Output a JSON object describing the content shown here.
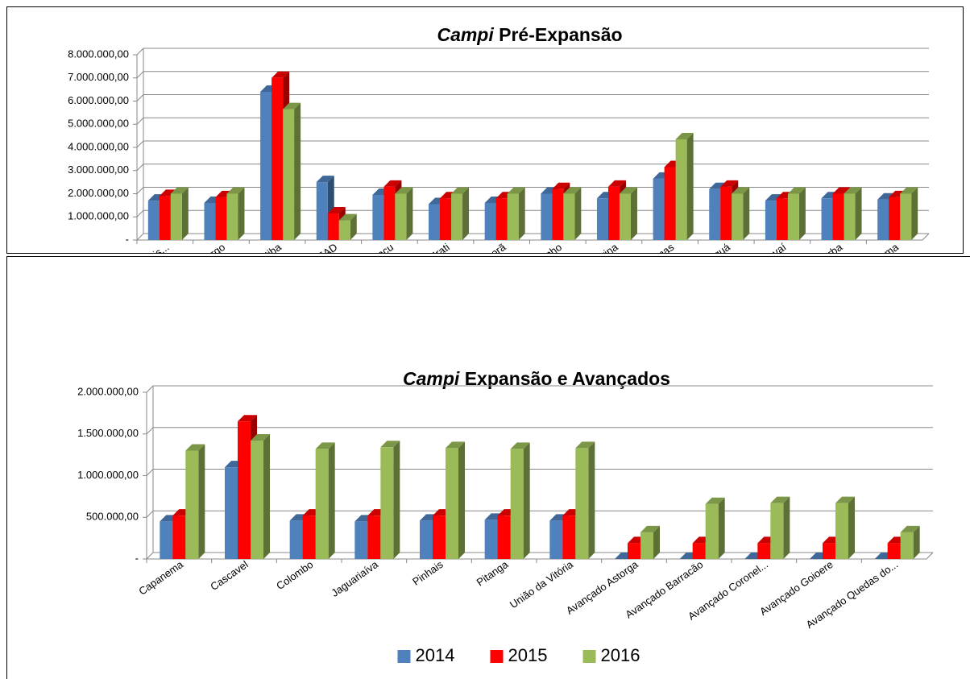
{
  "chart_data": [
    {
      "type": "bar",
      "title_emphasis": "Campi",
      "title": "Pré-Expansão",
      "categories": [
        "Assis...",
        "Campo Largo",
        "Curitiba",
        "EAD",
        "Foz do Iguaçu",
        "Irati",
        "Ivaiporã",
        "Jacarezinho",
        "Londrina",
        "Palmas",
        "Paranaguá",
        "Paranavaí",
        "Telêmaco Borba",
        "Umuarama"
      ],
      "series": [
        {
          "name": "2014",
          "color": "#4f81bd",
          "values": [
            1700000,
            1600000,
            6400000,
            2500000,
            1950000,
            1550000,
            1600000,
            2000000,
            1800000,
            2650000,
            2200000,
            1700000,
            1800000,
            1750000
          ]
        },
        {
          "name": "2015",
          "color": "#ff0000",
          "values": [
            1900000,
            1850000,
            7000000,
            1150000,
            2300000,
            1800000,
            1800000,
            2200000,
            2300000,
            3150000,
            2300000,
            1800000,
            2000000,
            1850000
          ]
        },
        {
          "name": "2016",
          "color": "#9bbb59",
          "values": [
            2000000,
            2000000,
            5650000,
            850000,
            2000000,
            2000000,
            2000000,
            2000000,
            2000000,
            4350000,
            2000000,
            2000000,
            2000000,
            2000000
          ]
        }
      ],
      "ylim": [
        0,
        8000000
      ],
      "yticks": [
        {
          "value": 0,
          "label": "-"
        },
        {
          "value": 1000000,
          "label": "1.000.000,00"
        },
        {
          "value": 2000000,
          "label": "2.000.000,00"
        },
        {
          "value": 3000000,
          "label": "3.000.000,00"
        },
        {
          "value": 4000000,
          "label": "4.000.000,00"
        },
        {
          "value": 5000000,
          "label": "5.000.000,00"
        },
        {
          "value": 6000000,
          "label": "6.000.000,00"
        },
        {
          "value": 7000000,
          "label": "7.000.000,00"
        },
        {
          "value": 8000000,
          "label": "8.000.000,00"
        }
      ],
      "grid": true,
      "legend": "bottom"
    },
    {
      "type": "bar",
      "title_emphasis": "Campi",
      "title": "Expansão e Avançados",
      "categories": [
        "Capanema",
        "Cascavel",
        "Colombo",
        "Jaguariaíva",
        "Pinhais",
        "Pitanga",
        "União da Vitória",
        "Avançado Astorga",
        "Avançado Barracão",
        "Avançado Coronel...",
        "Avançado Goioere",
        "Avançado Quedas do..."
      ],
      "series": [
        {
          "name": "2014",
          "color": "#4f81bd",
          "values": [
            450000,
            1100000,
            460000,
            450000,
            460000,
            470000,
            460000,
            0,
            0,
            0,
            0,
            0
          ]
        },
        {
          "name": "2015",
          "color": "#ff0000",
          "values": [
            520000,
            1650000,
            520000,
            520000,
            520000,
            520000,
            520000,
            190000,
            190000,
            190000,
            190000,
            190000
          ]
        },
        {
          "name": "2016",
          "color": "#9bbb59",
          "values": [
            1300000,
            1420000,
            1320000,
            1340000,
            1330000,
            1320000,
            1330000,
            320000,
            660000,
            670000,
            670000,
            320000
          ]
        }
      ],
      "ylim": [
        0,
        2000000
      ],
      "yticks": [
        {
          "value": 0,
          "label": "-"
        },
        {
          "value": 500000,
          "label": "500.000,00"
        },
        {
          "value": 1000000,
          "label": "1.000.000,00"
        },
        {
          "value": 1500000,
          "label": "1.500.000,00"
        },
        {
          "value": 2000000,
          "label": "2.000.000,00"
        }
      ],
      "grid": true,
      "legend": "bottom"
    }
  ]
}
